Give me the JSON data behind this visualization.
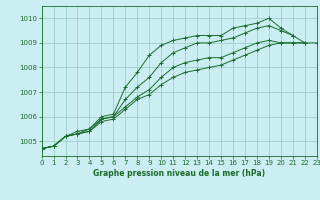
{
  "title": "Graphe pression niveau de la mer (hPa)",
  "background_color": "#cbeef3",
  "grid_color": "#9dcfca",
  "line_color": "#1a6b2a",
  "xlim": [
    0,
    23
  ],
  "ylim": [
    1004.4,
    1010.5
  ],
  "yticks": [
    1005,
    1006,
    1007,
    1008,
    1009,
    1010
  ],
  "xticks": [
    0,
    1,
    2,
    3,
    4,
    5,
    6,
    7,
    8,
    9,
    10,
    11,
    12,
    13,
    14,
    15,
    16,
    17,
    18,
    19,
    20,
    21,
    22,
    23
  ],
  "series": [
    [
      1004.7,
      1004.8,
      1005.2,
      1005.3,
      1005.5,
      1006.0,
      1006.1,
      1007.2,
      1007.8,
      1008.5,
      1008.9,
      1009.1,
      1009.2,
      1009.3,
      1009.3,
      1009.3,
      1009.6,
      1009.7,
      1009.8,
      1010.0,
      1009.6,
      1009.3,
      null,
      null
    ],
    [
      1004.7,
      1004.8,
      1005.2,
      1005.4,
      1005.5,
      1005.9,
      1006.0,
      1006.7,
      1007.2,
      1007.6,
      1008.2,
      1008.6,
      1008.8,
      1009.0,
      1009.0,
      1009.1,
      1009.2,
      1009.4,
      1009.6,
      1009.7,
      1009.5,
      1009.3,
      1009.0,
      null
    ],
    [
      1004.7,
      1004.8,
      1005.2,
      1005.3,
      1005.4,
      1005.9,
      1006.0,
      1006.4,
      1006.8,
      1007.1,
      1007.6,
      1008.0,
      1008.2,
      1008.3,
      1008.4,
      1008.4,
      1008.6,
      1008.8,
      1009.0,
      1009.1,
      1009.0,
      1009.0,
      1009.0,
      null
    ],
    [
      1004.7,
      1004.8,
      1005.2,
      1005.3,
      1005.4,
      1005.8,
      1005.9,
      1006.3,
      1006.7,
      1006.9,
      1007.3,
      1007.6,
      1007.8,
      1007.9,
      1008.0,
      1008.1,
      1008.3,
      1008.5,
      1008.7,
      1008.9,
      1009.0,
      1009.0,
      1009.0,
      1009.0
    ]
  ]
}
